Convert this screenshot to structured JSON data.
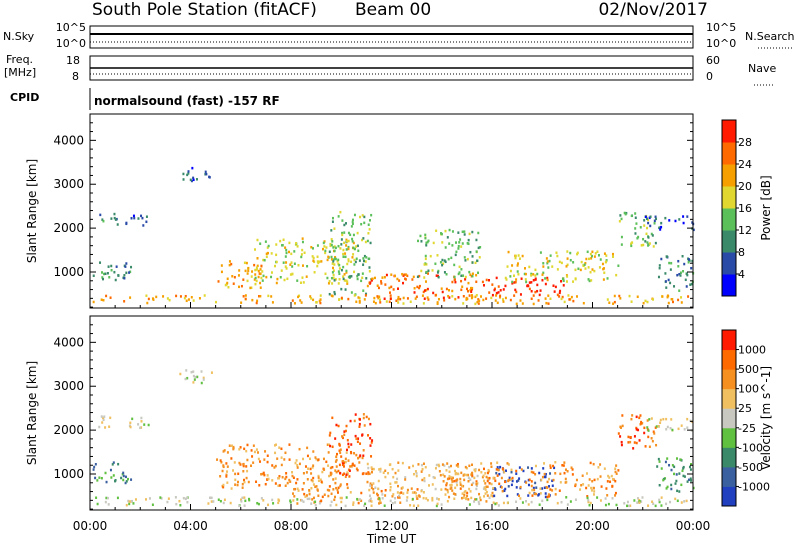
{
  "header": {
    "station": "South Pole Station (fitACF)",
    "beam": "Beam 00",
    "date": "02/Nov/2017"
  },
  "summary": {
    "nsky_label": "N.Sky",
    "nsky_ticks": [
      "10^5",
      "10^0"
    ],
    "nsearch_label": "N.Search",
    "nsearch_ticks": [
      "10^5",
      "10^0"
    ],
    "freq_label": "Freq.",
    "freq_unit": "[MHz]",
    "freq_ticks": [
      "18",
      "8"
    ],
    "nave_label": "Nave",
    "nave_ticks": [
      "60",
      "0"
    ],
    "cpid_label": "CPID",
    "cpid_text": "normalsound (fast) -157 RF"
  },
  "chart_data": [
    {
      "type": "heatmap",
      "title": "",
      "xlabel": "Time UT",
      "ylabel": "Slant Range [km]",
      "xlim": [
        0,
        24
      ],
      "x_ticks": [
        "00:00",
        "04:00",
        "08:00",
        "12:00",
        "16:00",
        "20:00",
        "00:00"
      ],
      "ylim": [
        180,
        4600
      ],
      "y_ticks": [
        1000,
        2000,
        3000,
        4000
      ],
      "colorbar": {
        "label": "Power [dB]",
        "ticks": [
          "28",
          "24",
          "20",
          "16",
          "12",
          "8",
          "4"
        ],
        "colors": [
          "#0000ff",
          "#2a4aa8",
          "#3a8a6a",
          "#5cc05a",
          "#e0d830",
          "#f5a000",
          "#ff6a00",
          "#ff1a00"
        ]
      },
      "scatter_regions": [
        {
          "t0": 0.1,
          "t1": 1.6,
          "r0": 800,
          "r1": 1300,
          "level": 2
        },
        {
          "t0": 0.3,
          "t1": 1.1,
          "r0": 2050,
          "r1": 2350,
          "level": 2
        },
        {
          "t0": 1.4,
          "t1": 2.4,
          "r0": 2050,
          "r1": 2350,
          "level": 1
        },
        {
          "t0": 3.5,
          "t1": 5.0,
          "r0": 3100,
          "r1": 3400,
          "level": 1
        },
        {
          "t0": 5.0,
          "t1": 6.8,
          "r0": 650,
          "r1": 1300,
          "level": 5
        },
        {
          "t0": 6.5,
          "t1": 10.5,
          "r0": 750,
          "r1": 1800,
          "level": 4
        },
        {
          "t0": 9.5,
          "t1": 11.2,
          "r0": 500,
          "r1": 2400,
          "level": 3
        },
        {
          "t0": 11.0,
          "t1": 16.0,
          "r0": 400,
          "r1": 1000,
          "level": 6
        },
        {
          "t0": 13.0,
          "t1": 15.5,
          "r0": 900,
          "r1": 2000,
          "level": 3
        },
        {
          "t0": 16.0,
          "t1": 19.0,
          "r0": 500,
          "r1": 900,
          "level": 7
        },
        {
          "t0": 16.5,
          "t1": 21.0,
          "r0": 800,
          "r1": 1500,
          "level": 4
        },
        {
          "t0": 21.0,
          "t1": 22.5,
          "r0": 1600,
          "r1": 2400,
          "level": 3
        },
        {
          "t0": 22.0,
          "t1": 24.0,
          "r0": 1950,
          "r1": 2300,
          "level": 1
        },
        {
          "t0": 22.5,
          "t1": 24.0,
          "r0": 600,
          "r1": 1400,
          "level": 2
        },
        {
          "t0": 0.0,
          "t1": 24.0,
          "r0": 300,
          "r1": 500,
          "level": 5
        }
      ]
    },
    {
      "type": "heatmap",
      "title": "",
      "xlabel": "Time UT",
      "ylabel": "Slant Range [km]",
      "xlim": [
        0,
        24
      ],
      "x_ticks": [
        "00:00",
        "04:00",
        "08:00",
        "12:00",
        "16:00",
        "20:00",
        "00:00"
      ],
      "ylim": [
        180,
        4600
      ],
      "y_ticks": [
        1000,
        2000,
        3000,
        4000
      ],
      "colorbar": {
        "label": "Velocity [m s^-1]",
        "ticks": [
          "1000",
          "500",
          "100",
          "25",
          "-25",
          "-100",
          "-500",
          "-1000"
        ],
        "colors": [
          "#2040c0",
          "#3a60a0",
          "#3a8a6a",
          "#60c040",
          "#c8c8c0",
          "#f0c060",
          "#f59020",
          "#ff6a00",
          "#ff1a00"
        ]
      },
      "scatter_regions": [
        {
          "t0": 0.1,
          "t1": 1.6,
          "r0": 800,
          "r1": 1300,
          "level": 2
        },
        {
          "t0": 0.3,
          "t1": 1.1,
          "r0": 2050,
          "r1": 2350,
          "level": 4
        },
        {
          "t0": 1.4,
          "t1": 2.4,
          "r0": 2050,
          "r1": 2350,
          "level": 4
        },
        {
          "t0": 3.5,
          "t1": 5.0,
          "r0": 3100,
          "r1": 3400,
          "level": 4
        },
        {
          "t0": 5.0,
          "t1": 10.5,
          "r0": 650,
          "r1": 1700,
          "level": 6
        },
        {
          "t0": 9.5,
          "t1": 11.2,
          "r0": 1000,
          "r1": 2400,
          "level": 7
        },
        {
          "t0": 8.0,
          "t1": 13.0,
          "r0": 350,
          "r1": 700,
          "level": 6
        },
        {
          "t0": 11.0,
          "t1": 16.0,
          "r0": 400,
          "r1": 1300,
          "level": 5
        },
        {
          "t0": 16.0,
          "t1": 18.5,
          "r0": 500,
          "r1": 1200,
          "level": 0
        },
        {
          "t0": 14.0,
          "t1": 21.0,
          "r0": 500,
          "r1": 1300,
          "level": 6
        },
        {
          "t0": 21.0,
          "t1": 22.5,
          "r0": 1600,
          "r1": 2400,
          "level": 7
        },
        {
          "t0": 22.0,
          "t1": 24.0,
          "r0": 1950,
          "r1": 2300,
          "level": 4
        },
        {
          "t0": 22.5,
          "t1": 24.0,
          "r0": 600,
          "r1": 1400,
          "level": 2
        },
        {
          "t0": 0.0,
          "t1": 24.0,
          "r0": 300,
          "r1": 500,
          "level": 4
        }
      ]
    }
  ]
}
